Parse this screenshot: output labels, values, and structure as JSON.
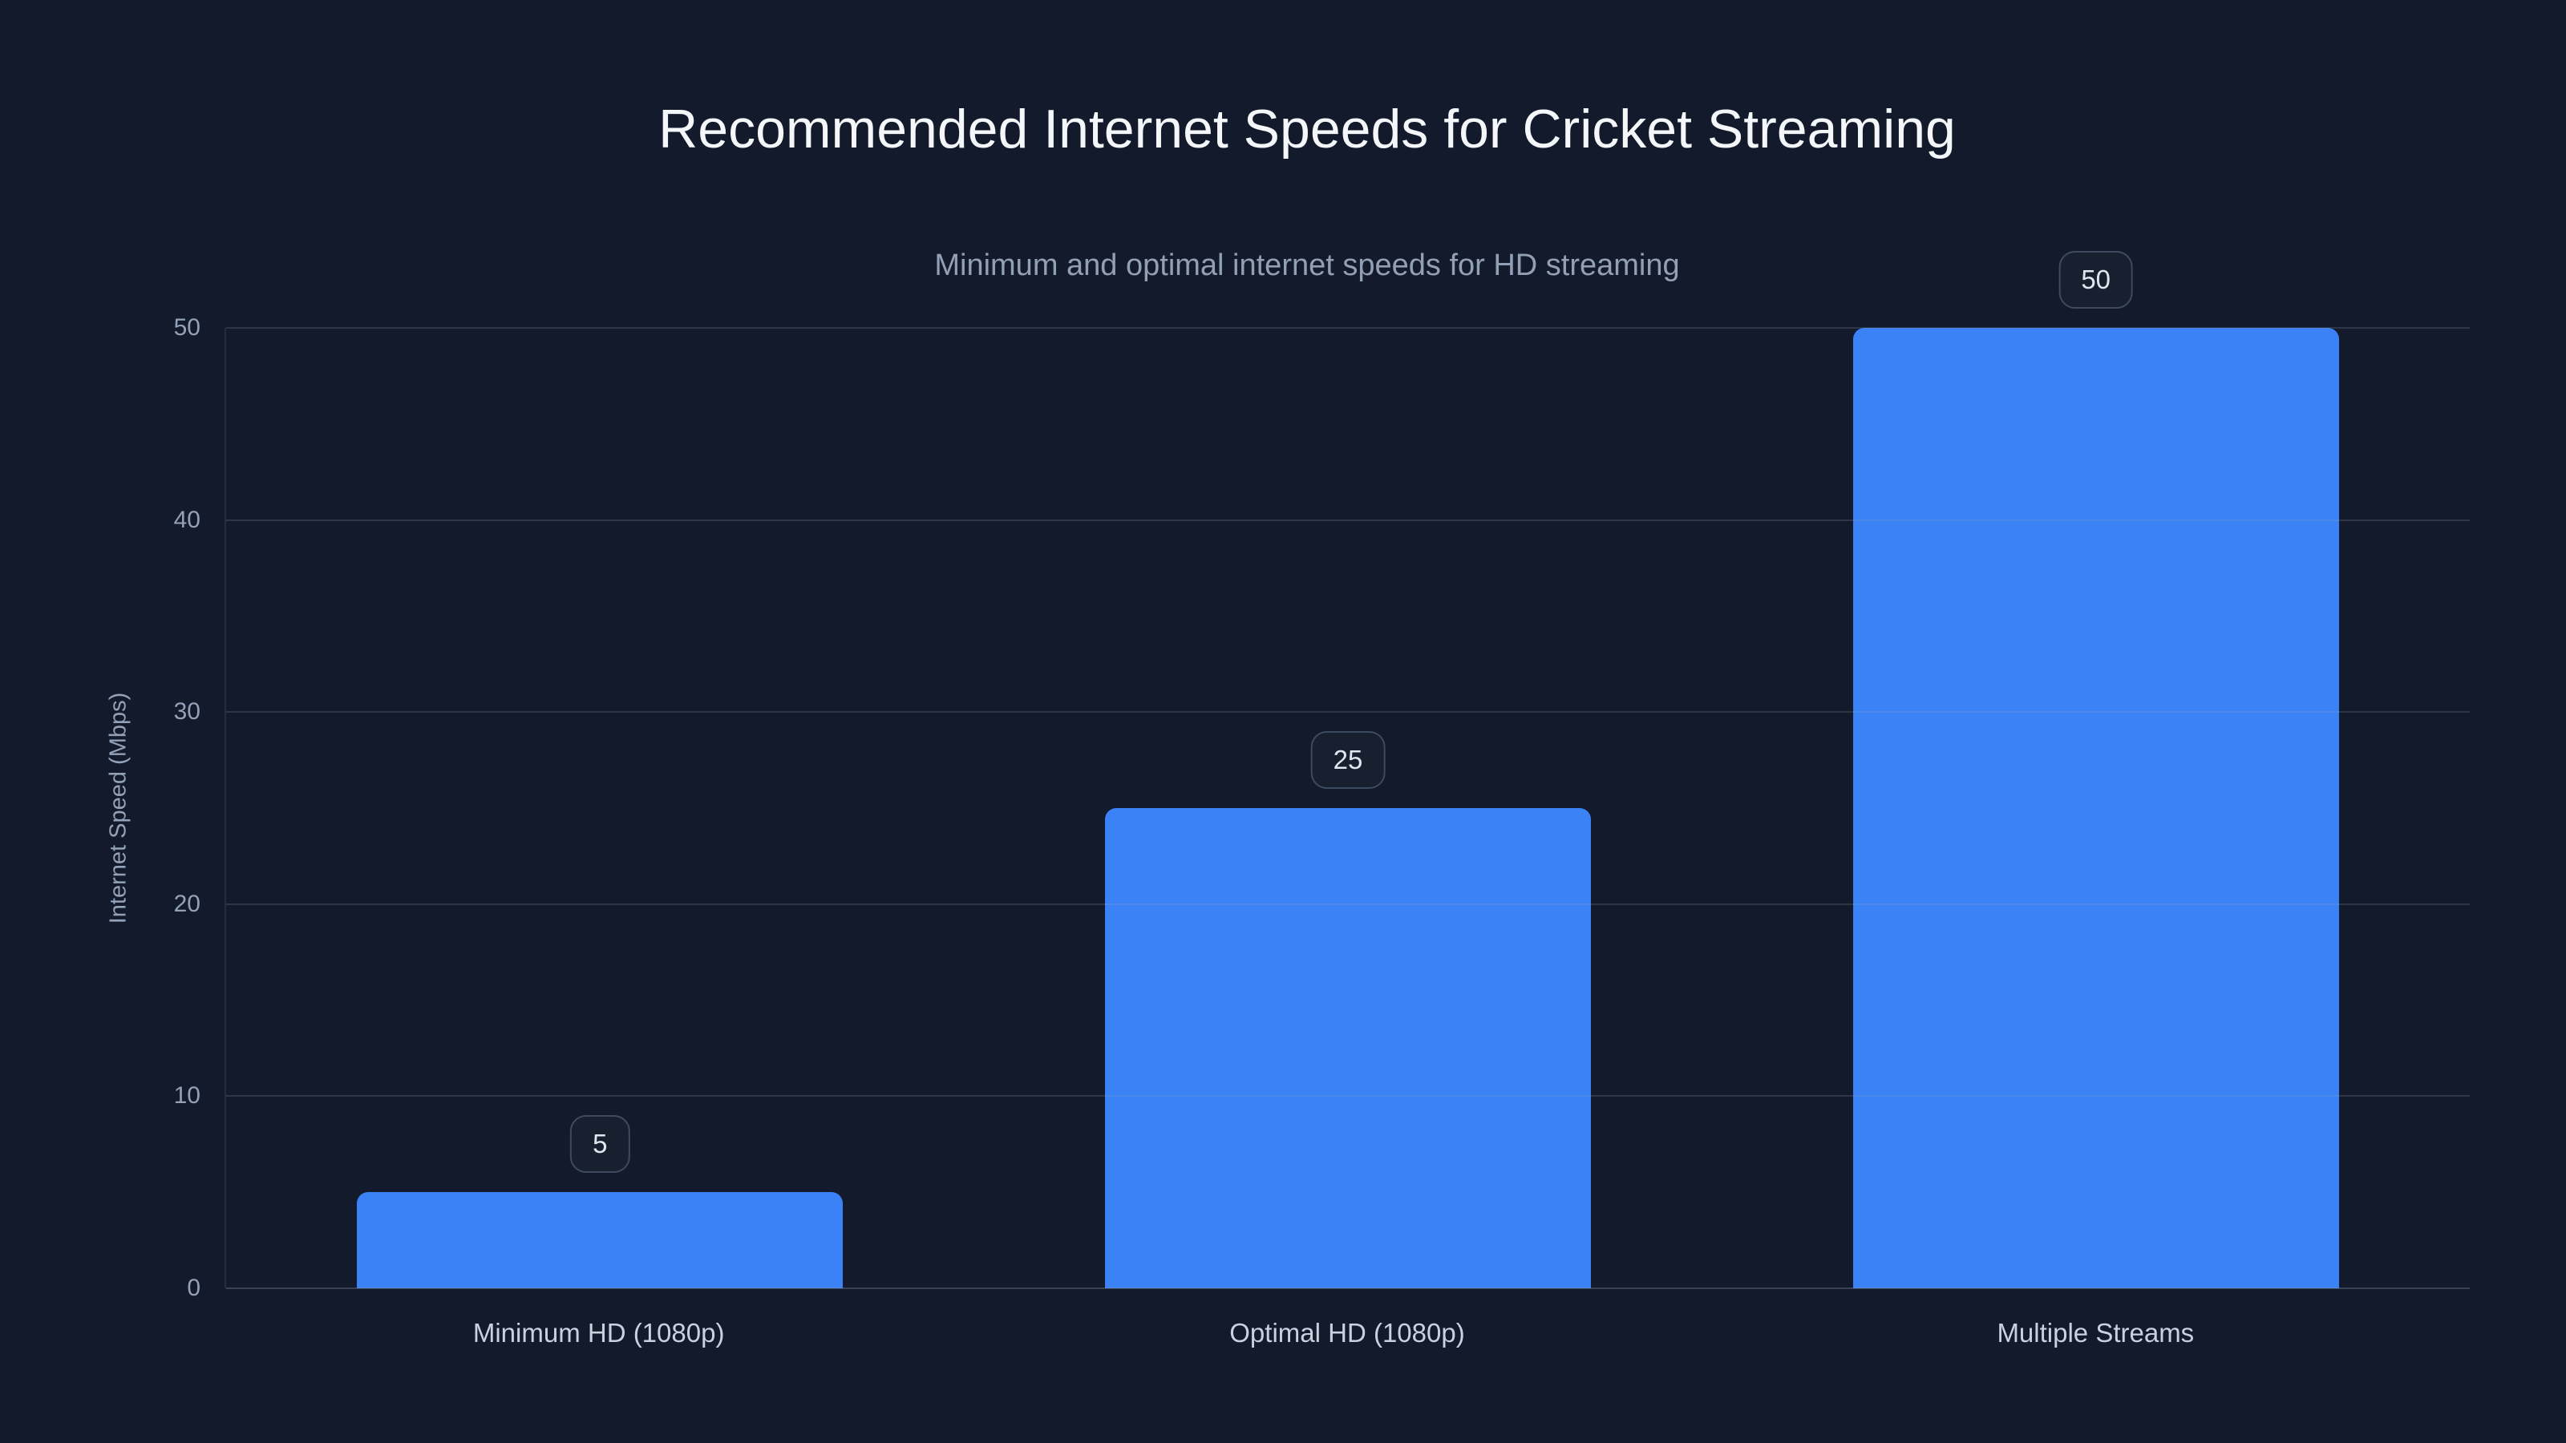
{
  "chart_data": {
    "type": "bar",
    "title": "Recommended Internet Speeds for Cricket Streaming",
    "subtitle": "Minimum and optimal internet speeds for HD streaming",
    "categories": [
      "Minimum HD (1080p)",
      "Optimal HD (1080p)",
      "Multiple Streams"
    ],
    "values": [
      5,
      25,
      50
    ],
    "value_labels": [
      "5",
      "25",
      "50"
    ],
    "xlabel": "",
    "ylabel": "Internet Speed (Mbps)",
    "ylim": [
      0,
      50
    ],
    "yticks": [
      0,
      10,
      20,
      30,
      40,
      50
    ],
    "grid": "horizontal",
    "legend": "none"
  },
  "colors": {
    "background": "#131a2b",
    "bar": "#3b82f6",
    "title_text": "#f4f7fa",
    "subtitle_text": "#92a0b6",
    "tick_text": "#93a2b8",
    "category_text": "#c8d2de",
    "gridline": "rgba(148,163,184,0.20)",
    "axis_line": "rgba(148,163,184,0.30)",
    "axis_soft": "rgba(148,163,184,0.14)",
    "badge_background": "#18202f",
    "badge_border": "#3e4a5e",
    "badge_text": "#dfe6ee"
  }
}
